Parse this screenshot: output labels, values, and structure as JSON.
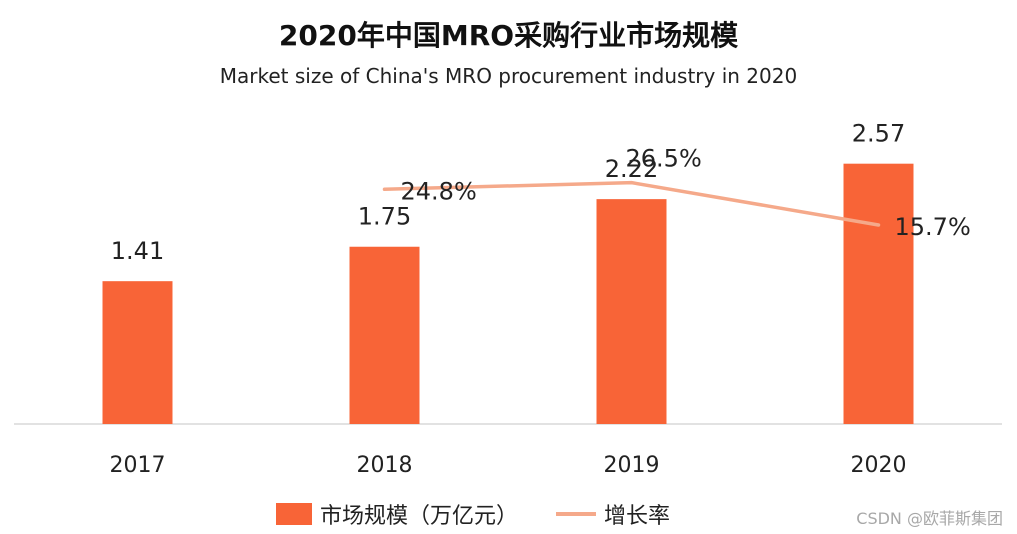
{
  "chart_data": {
    "type": "bar",
    "title": "2020年中国MRO采购行业市场规模",
    "subtitle": "Market size of China's MRO procurement industry in 2020",
    "categories": [
      "2017",
      "2018",
      "2019",
      "2020"
    ],
    "series": [
      {
        "name": "市场规模（万亿元）",
        "type": "bar",
        "values": [
          1.41,
          1.75,
          2.22,
          2.57
        ],
        "labels": [
          "1.41",
          "1.75",
          "2.22",
          "2.57"
        ],
        "color": "#f86437"
      },
      {
        "name": "增长率",
        "type": "line",
        "values": [
          null,
          24.8,
          26.5,
          15.7
        ],
        "labels": [
          "",
          "24.8%",
          "26.5%",
          "15.7%"
        ],
        "color": "#f5a98a"
      }
    ],
    "ylim": [
      0,
      3.1
    ],
    "line_ylim": [
      -35,
      45
    ],
    "grid": false,
    "legend": "bottom"
  },
  "watermark": "CSDN @欧菲斯集团"
}
